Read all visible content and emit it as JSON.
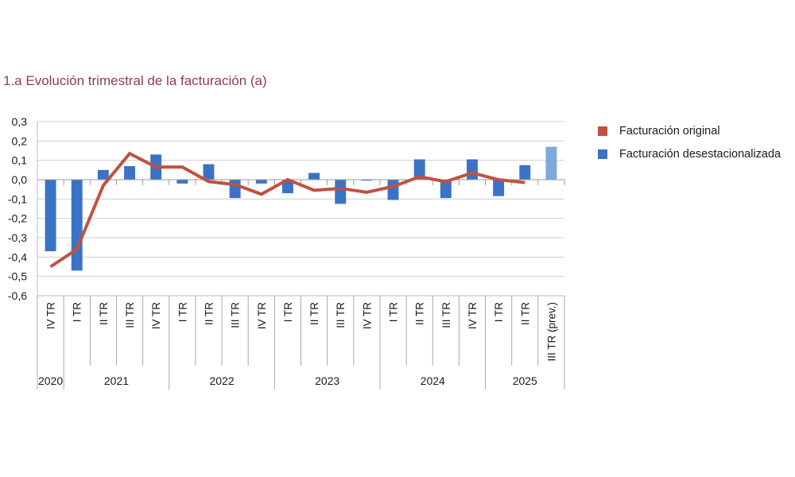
{
  "chart_data": {
    "type": "bar",
    "title": "1.a  Evolución trimestral de la facturación (a)",
    "xlabel": "",
    "ylabel": "",
    "ylim": [
      -0.6,
      0.3
    ],
    "yticks": [
      0.3,
      0.2,
      0.1,
      0.0,
      -0.1,
      -0.2,
      -0.3,
      -0.4,
      -0.5,
      -0.6
    ],
    "ytick_labels": [
      "0,3",
      "0,2",
      "0,1",
      "0,0",
      "-0,1",
      "-0,2",
      "-0,3",
      "-0,4",
      "-0,5",
      "-0,6"
    ],
    "grid": true,
    "legend_position": "right",
    "categories": [
      "IV TR",
      "I TR",
      "II TR",
      "III TR",
      "IV TR",
      "I TR",
      "II TR",
      "III TR",
      "IV TR",
      "I TR",
      "II TR",
      "III TR",
      "IV TR",
      "I TR",
      "II TR",
      "III TR",
      "IV TR",
      "I TR",
      "II TR",
      "III TR (prev.)"
    ],
    "years": [
      {
        "label": "2020",
        "count": 1
      },
      {
        "label": "2021",
        "count": 4
      },
      {
        "label": "2022",
        "count": 4
      },
      {
        "label": "2023",
        "count": 4
      },
      {
        "label": "2024",
        "count": 4
      },
      {
        "label": "2025",
        "count": 3
      }
    ],
    "series": [
      {
        "name": "Facturación original",
        "type": "line",
        "color": "#c0523f",
        "values": [
          -0.45,
          -0.36,
          -0.03,
          0.135,
          0.065,
          0.065,
          -0.01,
          -0.025,
          -0.075,
          0.0,
          -0.055,
          -0.045,
          -0.065,
          -0.035,
          0.015,
          -0.01,
          0.035,
          0.0,
          -0.015,
          null
        ]
      },
      {
        "name": "Facturación desestacionalizada",
        "type": "bar",
        "color": "#3a73c5",
        "forecast_color": "#7fa8dc",
        "values": [
          -0.37,
          -0.47,
          0.05,
          0.07,
          0.13,
          -0.02,
          0.08,
          -0.095,
          -0.02,
          -0.07,
          0.035,
          -0.125,
          -0.005,
          -0.105,
          0.105,
          -0.095,
          0.105,
          -0.085,
          0.075,
          0.17
        ],
        "forecast_flags": [
          false,
          false,
          false,
          false,
          false,
          false,
          false,
          false,
          false,
          false,
          false,
          false,
          false,
          false,
          false,
          false,
          false,
          false,
          false,
          true
        ]
      }
    ]
  },
  "legend": {
    "items": [
      {
        "label": "Facturación original",
        "color": "#c0523f"
      },
      {
        "label": "Facturación desestacionalizada",
        "color": "#3a73c5"
      }
    ]
  }
}
